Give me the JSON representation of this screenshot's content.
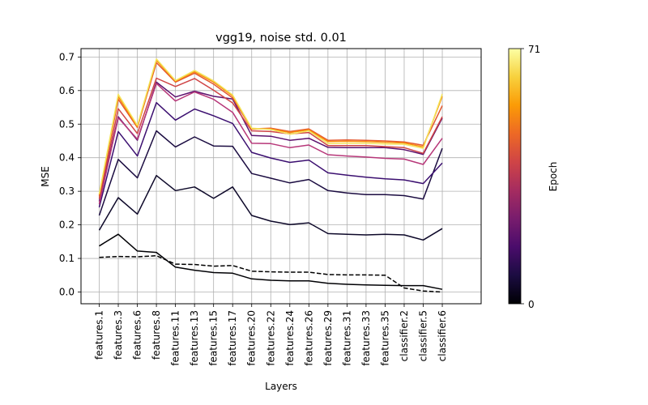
{
  "chart_data": {
    "type": "line",
    "title": "vgg19, noise std. 0.01",
    "xlabel": "Layers",
    "ylabel": "MSE",
    "categories": [
      "features.1",
      "features.3",
      "features.6",
      "features.8",
      "features.11",
      "features.13",
      "features.15",
      "features.17",
      "features.20",
      "features.22",
      "features.24",
      "features.26",
      "features.29",
      "features.31",
      "features.33",
      "features.35",
      "classifier.2",
      "classifier.5",
      "classifier.6"
    ],
    "ylim": [
      -0.035,
      0.725
    ],
    "yticks": [
      0.0,
      0.1,
      0.2,
      0.3,
      0.4,
      0.5,
      0.6,
      0.7
    ],
    "ytick_labels": [
      "0.0",
      "0.1",
      "0.2",
      "0.3",
      "0.4",
      "0.5",
      "0.6",
      "0.7"
    ],
    "grid": true,
    "colorbar": {
      "label": "Epoch",
      "min_label": "0",
      "max_label": "71",
      "colormap": "inferno",
      "stops": [
        "#000004",
        "#1b0c41",
        "#4a0c6b",
        "#781c6d",
        "#a52c60",
        "#cf4446",
        "#ed6925",
        "#fb9b06",
        "#f7d13d",
        "#fcffa4"
      ]
    },
    "series": [
      {
        "color": "#000000",
        "dashed": true,
        "values": [
          0.103,
          0.106,
          0.105,
          0.108,
          0.083,
          0.082,
          0.077,
          0.079,
          0.062,
          0.06,
          0.059,
          0.059,
          0.052,
          0.051,
          0.051,
          0.05,
          0.012,
          0.003,
          0.0
        ]
      },
      {
        "color": "#000004",
        "dashed": false,
        "values": [
          0.137,
          0.172,
          0.122,
          0.118,
          0.074,
          0.065,
          0.058,
          0.056,
          0.039,
          0.035,
          0.033,
          0.033,
          0.026,
          0.023,
          0.021,
          0.02,
          0.019,
          0.019,
          0.008
        ]
      },
      {
        "color": "#0d0829",
        "dashed": false,
        "values": [
          0.184,
          0.281,
          0.232,
          0.347,
          0.302,
          0.313,
          0.279,
          0.313,
          0.228,
          0.211,
          0.201,
          0.206,
          0.174,
          0.172,
          0.17,
          0.172,
          0.17,
          0.155,
          0.189
        ]
      },
      {
        "color": "#1b0c41",
        "dashed": false,
        "values": [
          0.228,
          0.395,
          0.34,
          0.48,
          0.432,
          0.462,
          0.435,
          0.434,
          0.353,
          0.339,
          0.325,
          0.335,
          0.302,
          0.295,
          0.29,
          0.29,
          0.287,
          0.277,
          0.428
        ]
      },
      {
        "color": "#3b0f70",
        "dashed": false,
        "values": [
          0.252,
          0.478,
          0.405,
          0.564,
          0.512,
          0.545,
          0.525,
          0.502,
          0.416,
          0.399,
          0.386,
          0.393,
          0.355,
          0.348,
          0.342,
          0.337,
          0.334,
          0.323,
          0.384
        ]
      },
      {
        "color": "#5c126e",
        "dashed": false,
        "values": [
          0.27,
          0.522,
          0.452,
          0.625,
          0.581,
          0.598,
          0.583,
          0.575,
          0.466,
          0.464,
          0.452,
          0.458,
          0.431,
          0.43,
          0.43,
          0.43,
          0.424,
          0.41,
          0.518
        ]
      },
      {
        "color": "#b73779",
        "dashed": false,
        "values": [
          0.262,
          0.519,
          0.455,
          0.621,
          0.569,
          0.596,
          0.574,
          0.535,
          0.443,
          0.442,
          0.43,
          0.438,
          0.409,
          0.405,
          0.402,
          0.398,
          0.396,
          0.38,
          0.458
        ]
      },
      {
        "color": "#cf4446",
        "dashed": false,
        "values": [
          0.278,
          0.546,
          0.472,
          0.637,
          0.612,
          0.636,
          0.601,
          0.563,
          0.48,
          0.478,
          0.471,
          0.475,
          0.436,
          0.436,
          0.436,
          0.433,
          0.43,
          0.413,
          0.522
        ]
      },
      {
        "color": "#e45a31",
        "dashed": false,
        "values": [
          0.285,
          0.574,
          0.49,
          0.683,
          0.625,
          0.652,
          0.619,
          0.578,
          0.486,
          0.488,
          0.478,
          0.486,
          0.452,
          0.453,
          0.452,
          0.45,
          0.447,
          0.437,
          0.555
        ]
      },
      {
        "color": "#f98e09",
        "dashed": false,
        "values": [
          0.29,
          0.582,
          0.493,
          0.69,
          0.628,
          0.656,
          0.625,
          0.584,
          0.486,
          0.486,
          0.475,
          0.483,
          0.448,
          0.449,
          0.448,
          0.446,
          0.444,
          0.432,
          0.583
        ]
      },
      {
        "color": "#f3e55d",
        "dashed": false,
        "values": [
          0.292,
          0.589,
          0.496,
          0.694,
          0.63,
          0.66,
          0.629,
          0.587,
          0.488,
          0.484,
          0.47,
          0.48,
          0.442,
          0.443,
          0.443,
          0.441,
          0.44,
          0.428,
          0.59
        ]
      }
    ]
  }
}
